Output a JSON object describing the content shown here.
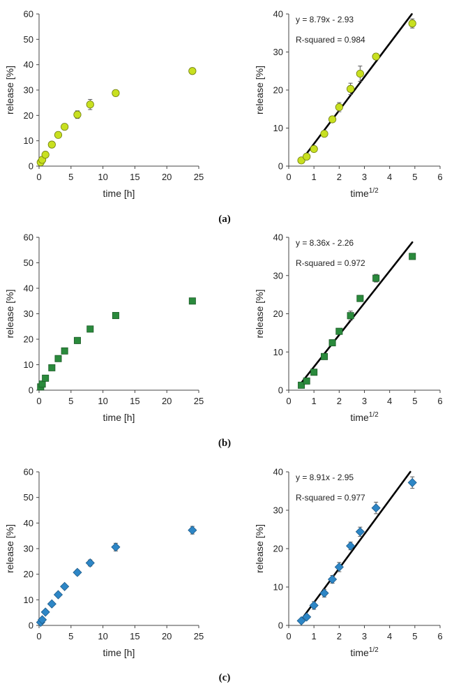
{
  "panel_labels": [
    "(a)",
    "(b)",
    "(c)"
  ],
  "colors": {
    "a": "#c8e020",
    "b": "#2a8a3c",
    "c": "#2d86c6",
    "fit": "#000000",
    "axis": "#444444"
  },
  "chart_data": [
    {
      "id": "a-left",
      "type": "scatter",
      "marker": "circle",
      "color": "#c8e020",
      "xlabel": "time [h]",
      "ylabel": "release [%]",
      "xlim": [
        0,
        25
      ],
      "ylim": [
        0,
        60
      ],
      "xticks": [
        0,
        5,
        10,
        15,
        20,
        25
      ],
      "yticks": [
        0,
        10,
        20,
        30,
        40,
        50,
        60
      ],
      "x": [
        0.25,
        0.5,
        1,
        2,
        3,
        4,
        6,
        8,
        12,
        24
      ],
      "y": [
        1.5,
        2.5,
        4.5,
        8.5,
        12.3,
        15.5,
        20.3,
        24.3,
        28.8,
        37.5
      ],
      "err": [
        0,
        0,
        0,
        0,
        0,
        0,
        1.5,
        2.0,
        0,
        0
      ]
    },
    {
      "id": "a-right",
      "type": "scatter",
      "marker": "circle",
      "color": "#c8e020",
      "xlabel": "time",
      "xlabel_sup": "1/2",
      "ylabel": "release [%]",
      "xlim": [
        0,
        6
      ],
      "ylim": [
        0,
        40
      ],
      "xticks": [
        0,
        1,
        2,
        3,
        4,
        5,
        6
      ],
      "yticks": [
        0,
        10,
        20,
        30,
        40
      ],
      "x": [
        0.5,
        0.71,
        1.0,
        1.41,
        1.73,
        2.0,
        2.45,
        2.83,
        3.46,
        4.9
      ],
      "y": [
        1.5,
        2.5,
        4.5,
        8.5,
        12.3,
        15.5,
        20.3,
        24.3,
        28.8,
        37.5
      ],
      "err": [
        0,
        0,
        0,
        0,
        0,
        1.2,
        1.5,
        2.0,
        0.8,
        1.2
      ],
      "fit": {
        "equation": "y = 8.79x - 2.93",
        "r_squared": "R-squared = 0.984",
        "slope": 8.79,
        "intercept": -2.93,
        "x_range": [
          0.5,
          4.88
        ]
      }
    },
    {
      "id": "b-left",
      "type": "scatter",
      "marker": "square",
      "color": "#2a8a3c",
      "xlabel": "time [h]",
      "ylabel": "release [%]",
      "xlim": [
        0,
        25
      ],
      "ylim": [
        0,
        60
      ],
      "xticks": [
        0,
        5,
        10,
        15,
        20,
        25
      ],
      "yticks": [
        0,
        10,
        20,
        30,
        40,
        50,
        60
      ],
      "x": [
        0.25,
        0.5,
        1,
        2,
        3,
        4,
        6,
        8,
        12,
        24
      ],
      "y": [
        1.3,
        2.4,
        4.7,
        8.8,
        12.4,
        15.4,
        19.5,
        24.0,
        29.3,
        35.0
      ],
      "err": [
        0,
        0,
        0,
        0,
        0,
        0,
        1.2,
        0,
        0.8,
        0
      ]
    },
    {
      "id": "b-right",
      "type": "scatter",
      "marker": "square",
      "color": "#2a8a3c",
      "xlabel": "time",
      "xlabel_sup": "1/2",
      "ylabel": "release [%]",
      "xlim": [
        0,
        6
      ],
      "ylim": [
        0,
        40
      ],
      "xticks": [
        0,
        1,
        2,
        3,
        4,
        5,
        6
      ],
      "yticks": [
        0,
        10,
        20,
        30,
        40
      ],
      "x": [
        0.5,
        0.71,
        1.0,
        1.41,
        1.73,
        2.0,
        2.45,
        2.83,
        3.46,
        4.9
      ],
      "y": [
        1.3,
        2.4,
        4.7,
        8.8,
        12.4,
        15.4,
        19.5,
        24.0,
        29.3,
        35.0
      ],
      "err": [
        0,
        0,
        0,
        0,
        0.8,
        0.6,
        1.2,
        0.8,
        1.0,
        0
      ],
      "fit": {
        "equation": "y = 8.36x - 2.26",
        "r_squared": "R-squared = 0.972",
        "slope": 8.36,
        "intercept": -2.26,
        "x_range": [
          0.5,
          4.9
        ]
      }
    },
    {
      "id": "c-left",
      "type": "scatter",
      "marker": "diamond",
      "color": "#2d86c6",
      "xlabel": "time [h]",
      "ylabel": "release [%]",
      "xlim": [
        0,
        25
      ],
      "ylim": [
        0,
        60
      ],
      "xticks": [
        0,
        5,
        10,
        15,
        20,
        25
      ],
      "yticks": [
        0,
        10,
        20,
        30,
        40,
        50,
        60
      ],
      "x": [
        0.25,
        0.5,
        1,
        2,
        3,
        4,
        6,
        8,
        12,
        24
      ],
      "y": [
        1.2,
        2.2,
        5.2,
        8.4,
        12.0,
        15.2,
        20.7,
        24.4,
        30.6,
        37.2
      ],
      "err": [
        0,
        0,
        0,
        0,
        0,
        0.8,
        1.0,
        1.2,
        1.5,
        1.5
      ]
    },
    {
      "id": "c-right",
      "type": "scatter",
      "marker": "diamond",
      "color": "#2d86c6",
      "xlabel": "time",
      "xlabel_sup": "1/2",
      "ylabel": "release [%]",
      "xlim": [
        0,
        6
      ],
      "ylim": [
        0,
        40
      ],
      "xticks": [
        0,
        1,
        2,
        3,
        4,
        5,
        6
      ],
      "yticks": [
        0,
        10,
        20,
        30,
        40
      ],
      "x": [
        0.5,
        0.71,
        1.0,
        1.41,
        1.73,
        2.0,
        2.45,
        2.83,
        3.46,
        4.9
      ],
      "y": [
        1.2,
        2.2,
        5.2,
        8.4,
        12.0,
        15.2,
        20.7,
        24.4,
        30.6,
        37.2
      ],
      "err": [
        0,
        0,
        1.0,
        1.0,
        1.0,
        1.2,
        1.0,
        1.2,
        1.5,
        1.5
      ],
      "fit": {
        "equation": "y = 8.91x - 2.95",
        "r_squared": "R-squared = 0.977",
        "slope": 8.91,
        "intercept": -2.95,
        "x_range": [
          0.5,
          4.82
        ]
      }
    }
  ]
}
